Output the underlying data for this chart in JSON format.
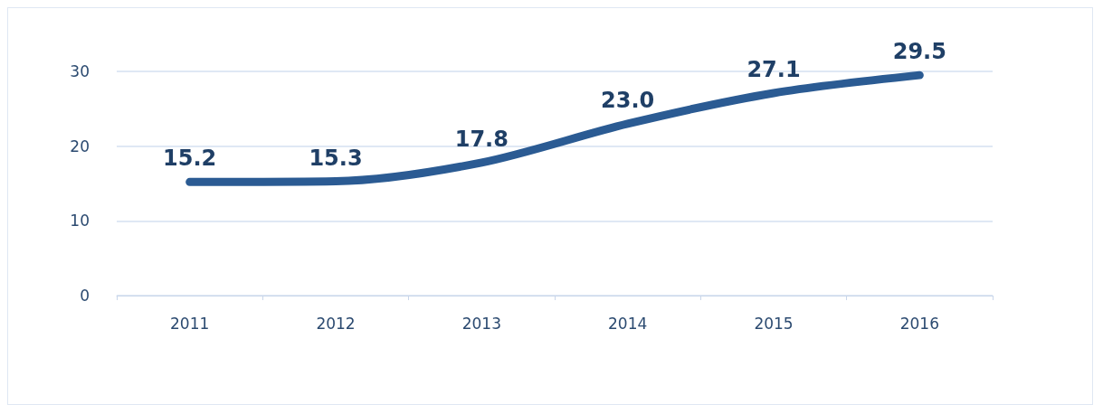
{
  "chart_data": {
    "type": "line",
    "categories": [
      "2011",
      "2012",
      "2013",
      "2014",
      "2015",
      "2016"
    ],
    "series": [
      {
        "color": "#2b5b93",
        "values": [
          15.2,
          15.3,
          17.8,
          23.0,
          27.1,
          29.5
        ],
        "value_labels": [
          "15.2",
          "15.3",
          "17.8",
          "23.0",
          "27.1",
          "29.5"
        ]
      }
    ],
    "ylim": [
      0,
      30
    ],
    "yticks": [
      0,
      10,
      20,
      30
    ],
    "grid": "y",
    "marker": "none",
    "line_style": "solid"
  }
}
